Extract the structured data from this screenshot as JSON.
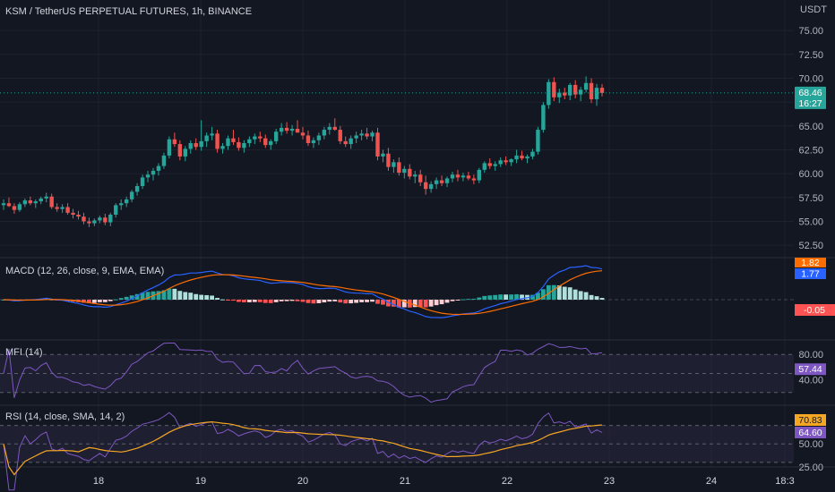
{
  "header": {
    "symbol": "KSM / TetherUS PERPETUAL FUTURES, 1h, BINANCE",
    "currency": "USDT"
  },
  "colors": {
    "background": "#131722",
    "up": "#26a69a",
    "down": "#ef5350",
    "grid": "#1e222d",
    "macd_line": "#2962ff",
    "signal_line": "#ff6d00",
    "hist_up_strong": "#26a69a",
    "hist_up_weak": "#b2dfdb",
    "hist_down_strong": "#ff5252",
    "hist_down_weak": "#ffcdd2",
    "mfi_line": "#7e57c2",
    "rsi_line": "#7e57c2",
    "rsi_ma_line": "#f5a623",
    "band_fill": "#2a2640"
  },
  "chart_data": [
    {
      "name": "price",
      "type": "candlestick",
      "x_ticks": [
        "18",
        "19",
        "20",
        "21",
        "22",
        "23",
        "24",
        "18:3"
      ],
      "y_ticks": [
        "75.00",
        "72.50",
        "70.00",
        "67.50",
        "65.00",
        "62.50",
        "60.00",
        "57.50",
        "55.00",
        "52.50"
      ],
      "ylim": [
        51.2,
        78.2
      ],
      "last_price": "68.46",
      "countdown": "16:27",
      "candles_ohlc": [
        [
          56.7,
          57.3,
          56.2,
          56.9
        ],
        [
          56.9,
          57.5,
          56.5,
          56.6
        ],
        [
          56.6,
          56.9,
          55.8,
          56.2
        ],
        [
          56.2,
          57.0,
          56.0,
          56.8
        ],
        [
          56.8,
          57.4,
          56.5,
          57.2
        ],
        [
          57.2,
          57.6,
          56.7,
          56.9
        ],
        [
          56.9,
          57.3,
          56.4,
          57.1
        ],
        [
          57.1,
          57.6,
          56.8,
          57.4
        ],
        [
          57.4,
          58.0,
          57.0,
          57.6
        ],
        [
          57.6,
          57.9,
          56.3,
          56.5
        ],
        [
          56.5,
          56.9,
          56.0,
          56.3
        ],
        [
          56.3,
          56.8,
          55.9,
          56.5
        ],
        [
          56.5,
          56.9,
          55.7,
          55.9
        ],
        [
          55.9,
          56.3,
          55.3,
          55.7
        ],
        [
          55.7,
          56.1,
          55.2,
          55.5
        ],
        [
          55.5,
          55.9,
          54.7,
          55.0
        ],
        [
          55.0,
          55.4,
          54.4,
          54.8
        ],
        [
          54.8,
          55.3,
          54.5,
          55.1
        ],
        [
          55.1,
          55.6,
          54.8,
          55.4
        ],
        [
          55.4,
          55.8,
          54.6,
          54.9
        ],
        [
          54.9,
          55.9,
          54.5,
          55.7
        ],
        [
          55.7,
          56.9,
          55.4,
          56.7
        ],
        [
          56.7,
          57.3,
          56.2,
          56.9
        ],
        [
          56.9,
          57.6,
          56.5,
          57.3
        ],
        [
          57.3,
          58.3,
          57.0,
          58.1
        ],
        [
          58.1,
          59.0,
          57.7,
          58.7
        ],
        [
          58.7,
          59.9,
          58.4,
          59.6
        ],
        [
          59.6,
          60.3,
          59.1,
          59.9
        ],
        [
          59.9,
          60.6,
          59.3,
          60.3
        ],
        [
          60.3,
          61.1,
          59.8,
          60.8
        ],
        [
          60.8,
          62.2,
          60.5,
          61.9
        ],
        [
          61.9,
          63.9,
          61.6,
          63.6
        ],
        [
          63.6,
          64.3,
          62.8,
          63.1
        ],
        [
          63.1,
          63.5,
          61.4,
          61.8
        ],
        [
          61.8,
          62.9,
          61.3,
          62.6
        ],
        [
          62.6,
          63.5,
          62.1,
          63.2
        ],
        [
          63.2,
          63.7,
          62.5,
          62.8
        ],
        [
          62.8,
          65.6,
          62.4,
          63.4
        ],
        [
          63.4,
          64.3,
          62.8,
          64.0
        ],
        [
          64.0,
          64.9,
          63.5,
          64.2
        ],
        [
          64.2,
          64.6,
          62.2,
          62.6
        ],
        [
          62.6,
          63.2,
          62.1,
          62.9
        ],
        [
          62.9,
          64.0,
          62.5,
          63.7
        ],
        [
          63.7,
          64.6,
          63.0,
          63.3
        ],
        [
          63.3,
          63.8,
          62.4,
          62.7
        ],
        [
          62.7,
          63.5,
          62.2,
          63.2
        ],
        [
          63.2,
          63.9,
          62.8,
          63.6
        ],
        [
          63.6,
          64.2,
          63.1,
          63.9
        ],
        [
          63.9,
          64.4,
          63.3,
          63.7
        ],
        [
          63.7,
          64.1,
          62.7,
          63.0
        ],
        [
          63.0,
          63.6,
          62.5,
          63.4
        ],
        [
          63.4,
          64.7,
          63.1,
          64.4
        ],
        [
          64.4,
          65.3,
          64.0,
          64.8
        ],
        [
          64.8,
          65.4,
          64.2,
          64.5
        ],
        [
          64.5,
          65.1,
          64.0,
          64.7
        ],
        [
          64.7,
          65.6,
          64.3,
          64.3
        ],
        [
          64.3,
          64.9,
          63.6,
          64.0
        ],
        [
          64.0,
          64.5,
          62.9,
          63.2
        ],
        [
          63.2,
          63.8,
          62.7,
          63.5
        ],
        [
          63.5,
          64.3,
          63.0,
          64.0
        ],
        [
          64.0,
          64.9,
          63.6,
          64.6
        ],
        [
          64.6,
          65.3,
          64.1,
          64.9
        ],
        [
          64.9,
          65.8,
          64.5,
          64.6
        ],
        [
          64.6,
          65.0,
          63.1,
          63.4
        ],
        [
          63.4,
          63.9,
          62.8,
          63.1
        ],
        [
          63.1,
          64.0,
          62.6,
          63.7
        ],
        [
          63.7,
          64.4,
          63.2,
          64.0
        ],
        [
          64.0,
          64.6,
          63.5,
          64.2
        ],
        [
          64.2,
          64.8,
          63.6,
          63.9
        ],
        [
          63.9,
          64.5,
          63.4,
          64.3
        ],
        [
          64.3,
          64.8,
          61.4,
          61.8
        ],
        [
          61.8,
          62.5,
          61.2,
          62.1
        ],
        [
          62.1,
          62.7,
          60.3,
          60.7
        ],
        [
          60.7,
          61.5,
          60.1,
          61.2
        ],
        [
          61.2,
          61.7,
          59.8,
          60.1
        ],
        [
          60.1,
          60.8,
          59.5,
          60.5
        ],
        [
          60.5,
          61.0,
          59.4,
          59.7
        ],
        [
          59.7,
          60.3,
          59.0,
          59.9
        ],
        [
          59.9,
          60.4,
          58.7,
          59.1
        ],
        [
          59.1,
          59.8,
          57.8,
          58.4
        ],
        [
          58.4,
          59.2,
          58.0,
          58.9
        ],
        [
          58.9,
          59.6,
          58.4,
          59.3
        ],
        [
          59.3,
          59.8,
          58.7,
          59.0
        ],
        [
          59.0,
          59.7,
          58.6,
          59.5
        ],
        [
          59.5,
          60.2,
          59.1,
          59.9
        ],
        [
          59.9,
          60.4,
          59.2,
          59.6
        ],
        [
          59.6,
          60.1,
          59.2,
          59.8
        ],
        [
          59.8,
          60.2,
          59.3,
          59.5
        ],
        [
          59.5,
          59.9,
          58.9,
          59.3
        ],
        [
          59.3,
          60.6,
          59.0,
          60.4
        ],
        [
          60.4,
          61.3,
          60.1,
          61.1
        ],
        [
          61.1,
          61.6,
          60.5,
          60.8
        ],
        [
          60.8,
          61.3,
          60.3,
          61.0
        ],
        [
          61.0,
          61.7,
          60.7,
          61.4
        ],
        [
          61.4,
          61.8,
          60.9,
          61.2
        ],
        [
          61.2,
          61.6,
          60.8,
          61.5
        ],
        [
          61.5,
          62.5,
          61.1,
          61.9
        ],
        [
          61.9,
          62.4,
          61.4,
          61.6
        ],
        [
          61.6,
          62.0,
          61.1,
          61.8
        ],
        [
          61.8,
          62.6,
          61.5,
          62.3
        ],
        [
          62.3,
          64.9,
          62.0,
          64.6
        ],
        [
          64.6,
          67.5,
          64.3,
          67.2
        ],
        [
          67.2,
          69.9,
          66.8,
          69.6
        ],
        [
          69.6,
          70.1,
          67.6,
          68.0
        ],
        [
          68.0,
          68.9,
          67.4,
          68.5
        ],
        [
          68.5,
          69.0,
          67.8,
          68.2
        ],
        [
          68.2,
          69.5,
          67.7,
          69.3
        ],
        [
          69.3,
          69.8,
          67.9,
          68.3
        ],
        [
          68.3,
          69.1,
          67.6,
          68.8
        ],
        [
          68.8,
          70.2,
          68.5,
          69.5
        ],
        [
          69.5,
          70.0,
          67.4,
          67.8
        ],
        [
          67.8,
          69.4,
          67.1,
          69.0
        ],
        [
          69.0,
          69.4,
          68.1,
          68.46
        ]
      ]
    },
    {
      "name": "macd",
      "type": "line",
      "label": "MACD (12, 26, close, 9, EMA, EMA)",
      "ylim": [
        -2.6,
        2.6
      ],
      "last_signal": "1.82",
      "last_macd": "1.77",
      "last_hist": "-0.05"
    },
    {
      "name": "mfi",
      "type": "line",
      "label": "MFI (14)",
      "y_ticks": [
        "80.00",
        "40.00"
      ],
      "ylim": [
        0,
        100
      ],
      "band": [
        20,
        80
      ],
      "last_value": "57.44"
    },
    {
      "name": "rsi",
      "type": "line",
      "label": "RSI (14, close, SMA, 14, 2)",
      "y_ticks": [
        "50.00",
        "25.00"
      ],
      "ylim": [
        25,
        90
      ],
      "band": [
        30,
        70
      ],
      "last_rsi": "64.60",
      "last_rsi_ma": "70.83"
    }
  ]
}
